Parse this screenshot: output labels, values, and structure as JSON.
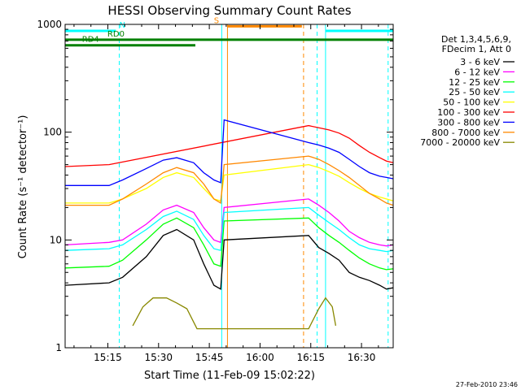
{
  "chart_data": {
    "type": "line",
    "title": "HESSI Observing Summary Count Rates",
    "xlabel": "Start Time (11-Feb-09 15:02:22)",
    "ylabel": "Count Rate (s⁻¹ detector⁻¹)",
    "yscale": "log",
    "ylim": [
      1,
      1000
    ],
    "xlim_minutes_after_start": [
      0,
      97
    ],
    "x_unit": "minutes after 15:02:22",
    "x_tick_labels": [
      "15:15",
      "15:30",
      "15:45",
      "16:00",
      "16:15",
      "16:30"
    ],
    "x_tick_minutes": [
      12.63,
      27.63,
      42.63,
      57.63,
      72.63,
      87.63
    ],
    "y_tick_labels": [
      "1",
      "10",
      "100",
      "1000"
    ],
    "y_tick_values": [
      1,
      10,
      100,
      1000
    ],
    "legend_header": [
      "Det 1,3,4,5,6,9,",
      "FDecim 1, Att 0"
    ],
    "legend_position": "right",
    "timestamp": "27-Feb-2010 23:46",
    "series": [
      {
        "name": "3 - 6 keV",
        "color": "#000000",
        "t": [
          0,
          13,
          17,
          24,
          29,
          33,
          38,
          41,
          44,
          46,
          47,
          72,
          75,
          78,
          81,
          84,
          87,
          90,
          93,
          95,
          97
        ],
        "values": [
          3.8,
          4.0,
          4.5,
          7,
          11,
          12.5,
          10,
          6,
          3.8,
          3.5,
          10,
          11,
          8.5,
          7.5,
          6.5,
          5,
          4.5,
          4.2,
          3.8,
          3.5,
          3.6
        ]
      },
      {
        "name": "6 - 12 keV",
        "color": "#ff00ff",
        "t": [
          0,
          13,
          17,
          24,
          29,
          33,
          38,
          41,
          44,
          46,
          47,
          72,
          75,
          78,
          81,
          84,
          87,
          90,
          93,
          95,
          97
        ],
        "values": [
          9,
          9.5,
          10,
          14,
          19,
          21,
          18,
          13,
          10,
          9.5,
          20,
          24,
          21,
          18,
          15,
          12,
          10.5,
          9.5,
          9,
          8.8,
          9
        ]
      },
      {
        "name": "12 - 25 keV",
        "color": "#00ff00",
        "t": [
          0,
          13,
          17,
          24,
          29,
          33,
          38,
          41,
          44,
          46,
          47,
          72,
          75,
          78,
          81,
          84,
          87,
          90,
          93,
          95,
          97
        ],
        "values": [
          5.5,
          5.7,
          6.5,
          10,
          14,
          16,
          13,
          9,
          6,
          5.7,
          15,
          16,
          13,
          11,
          9.5,
          8,
          6.8,
          6,
          5.5,
          5.3,
          5.4
        ]
      },
      {
        "name": "25 - 50 keV",
        "color": "#00ffff",
        "t": [
          0,
          13,
          17,
          24,
          29,
          33,
          38,
          41,
          44,
          46,
          47,
          72,
          75,
          78,
          81,
          84,
          87,
          90,
          93,
          95,
          97
        ],
        "values": [
          8,
          8.3,
          9,
          12.5,
          16.5,
          18.5,
          15.5,
          11,
          8.3,
          8,
          18,
          20,
          17,
          14.5,
          12.5,
          10.5,
          9,
          8.3,
          8,
          7.8,
          8
        ]
      },
      {
        "name": "50 - 100 keV",
        "color": "#ffff00",
        "t": [
          0,
          13,
          17,
          24,
          29,
          33,
          38,
          41,
          44,
          46,
          47,
          72,
          75,
          78,
          81,
          84,
          87,
          90,
          93,
          95,
          97
        ],
        "values": [
          22,
          22,
          24,
          30,
          38,
          42,
          38,
          30,
          24,
          23,
          40,
          50,
          47,
          43,
          39,
          34,
          30,
          27,
          25,
          24,
          23
        ]
      },
      {
        "name": "100 - 300 keV",
        "color": "#ff0000",
        "t": [
          0,
          13,
          72,
          75,
          78,
          81,
          84,
          87,
          90,
          93,
          95,
          97
        ],
        "values": [
          48,
          50,
          115,
          110,
          105,
          98,
          88,
          75,
          65,
          58,
          54,
          52
        ]
      },
      {
        "name": "300 - 800 keV",
        "color": "#0000ff",
        "t": [
          0,
          13,
          17,
          24,
          29,
          33,
          38,
          41,
          44,
          46,
          47,
          72,
          75,
          78,
          81,
          84,
          87,
          90,
          93,
          95,
          97
        ],
        "values": [
          32,
          32,
          36,
          46,
          55,
          58,
          52,
          42,
          36,
          34,
          130,
          80,
          76,
          71,
          65,
          56,
          48,
          42,
          39,
          38,
          37
        ]
      },
      {
        "name": "800 - 7000 keV",
        "color": "#ff8800",
        "t": [
          0,
          13,
          17,
          24,
          29,
          33,
          38,
          41,
          44,
          46,
          47,
          72,
          75,
          78,
          81,
          84,
          87,
          90,
          93,
          95,
          97
        ],
        "values": [
          21,
          21,
          24,
          33,
          42,
          47,
          42,
          33,
          24,
          22,
          50,
          60,
          56,
          50,
          44,
          38,
          32,
          27,
          24,
          22,
          21
        ]
      },
      {
        "name": "7000 - 20000 keV",
        "color": "#888800",
        "t": [
          20,
          23,
          26,
          30,
          33,
          36,
          39,
          72,
          75,
          77,
          79,
          80
        ],
        "values": [
          1.6,
          2.4,
          2.9,
          2.9,
          2.6,
          2.3,
          1.5,
          1.5,
          2.3,
          2.9,
          2.4,
          1.6
        ]
      }
    ],
    "state_bars": [
      {
        "label": "N",
        "color": "#00ffff",
        "level": 870,
        "start_min": 0,
        "end_min": 15,
        "label_at_min": 16
      },
      {
        "label": "",
        "color": "#00ffff",
        "level": 870,
        "start_min": 77,
        "end_min": 97,
        "label_at_min": null
      },
      {
        "label": "RD0",
        "color": "#008000",
        "level": 720,
        "start_min": 0,
        "end_min": 97,
        "label_at_min": 12.5
      },
      {
        "label": "RD4",
        "color": "#008000",
        "level": 640,
        "start_min": 0,
        "end_min": 38.5,
        "label_at_min": 5
      },
      {
        "label": "S",
        "color": "#ff8800",
        "level": 960,
        "start_min": 48,
        "end_min": 70,
        "label_at_min": 44
      }
    ],
    "vertical_markers": [
      {
        "minute": 0,
        "color": "#00ffff",
        "style": "solid"
      },
      {
        "minute": 16,
        "color": "#00ffff",
        "style": "dashed"
      },
      {
        "minute": 46.3,
        "color": "#00ffff",
        "style": "solid"
      },
      {
        "minute": 48,
        "color": "#ff8800",
        "style": "solid"
      },
      {
        "minute": 70.5,
        "color": "#ff8800",
        "style": "dashed"
      },
      {
        "minute": 74.5,
        "color": "#00ffff",
        "style": "dashed"
      },
      {
        "minute": 77,
        "color": "#00ffff",
        "style": "solid"
      },
      {
        "minute": 95.5,
        "color": "#00ffff",
        "style": "dashed"
      }
    ]
  }
}
